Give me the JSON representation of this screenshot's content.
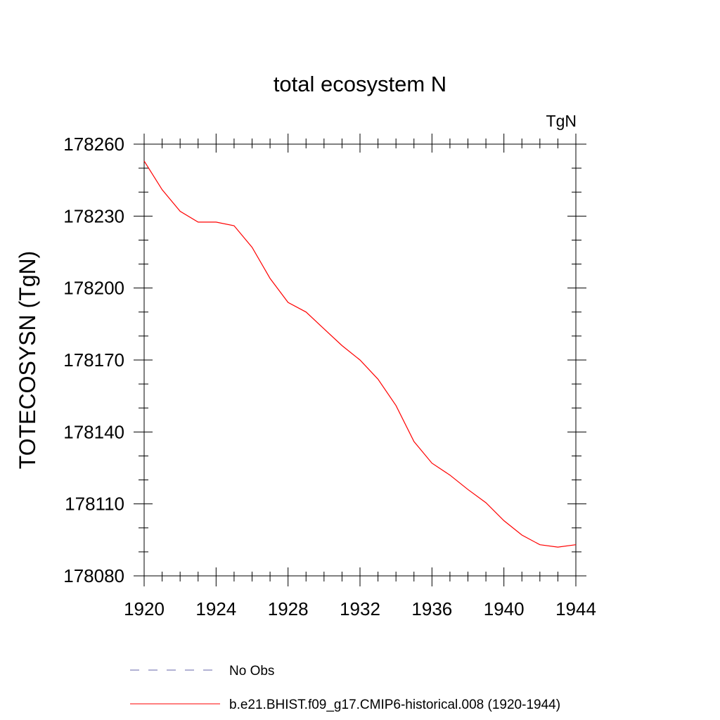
{
  "chart_data": {
    "type": "line",
    "title": "total ecosystem N",
    "units_label": "TgN",
    "xlabel": "",
    "ylabel": "TOTECOSYSN  (TgN)",
    "xlim": [
      1920,
      1944
    ],
    "ylim": [
      178080,
      178260
    ],
    "x_ticks": [
      1920,
      1924,
      1928,
      1932,
      1936,
      1940,
      1944
    ],
    "y_ticks": [
      178080,
      178110,
      178140,
      178170,
      178200,
      178230,
      178260
    ],
    "x_tick_labels": [
      "1920",
      "1924",
      "1928",
      "1932",
      "1936",
      "1940",
      "1944"
    ],
    "y_tick_labels": [
      "178080",
      "178110",
      "178140",
      "178170",
      "178200",
      "178230",
      "178260"
    ],
    "grid": false,
    "series": [
      {
        "name": "b.e21.BHIST.f09_g17.CMIP6-historical.008 (1920-1944)",
        "color": "#ff0000",
        "style": "solid",
        "x": [
          1920,
          1921,
          1922,
          1923,
          1924,
          1925,
          1926,
          1927,
          1928,
          1929,
          1930,
          1931,
          1932,
          1933,
          1934,
          1935,
          1936,
          1937,
          1938,
          1939,
          1940,
          1941,
          1942,
          1943,
          1944
        ],
        "values": [
          178253,
          178241,
          178232,
          178227.5,
          178227.5,
          178226,
          178217,
          178204,
          178194,
          178190,
          178183,
          178176,
          178170,
          178162,
          178151,
          178136,
          178127,
          178122,
          178116,
          178110.5,
          178103,
          178097,
          178093,
          178092,
          178093
        ]
      }
    ],
    "legend": {
      "placement": "bottom",
      "entries": [
        {
          "label": "No Obs",
          "color": "#6666aa",
          "style": "dashed"
        },
        {
          "label": "b.e21.BHIST.f09_g17.CMIP6-historical.008 (1920-1944)",
          "color": "#ff0000",
          "style": "solid"
        }
      ]
    }
  }
}
